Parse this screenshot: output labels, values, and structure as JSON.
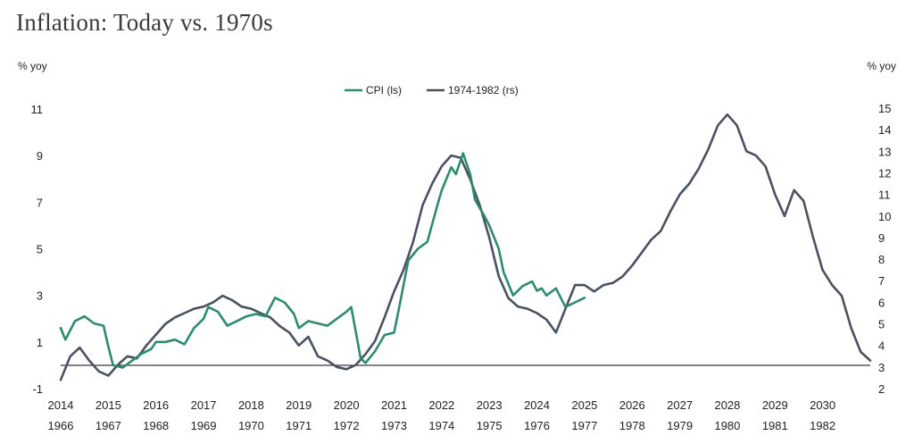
{
  "title": "Inflation: Today vs. 1970s",
  "chart_data": {
    "type": "line",
    "title": "Inflation: Today vs. 1970s",
    "left_axis": {
      "unit_label": "% yoy",
      "ylim": [
        -1,
        11
      ],
      "ticks": [
        -1,
        1,
        3,
        5,
        7,
        9,
        11
      ]
    },
    "right_axis": {
      "unit_label": "% yoy",
      "ylim": [
        2,
        15
      ],
      "ticks": [
        2,
        3,
        4,
        5,
        6,
        7,
        8,
        9,
        10,
        11,
        12,
        13,
        14,
        15
      ]
    },
    "x_axis_top": {
      "labels": [
        "2014",
        "2015",
        "2016",
        "2017",
        "2018",
        "2019",
        "2020",
        "2021",
        "2022",
        "2023",
        "2024",
        "2025",
        "2026",
        "2027",
        "2028",
        "2029",
        "2030"
      ]
    },
    "x_axis_bottom": {
      "labels": [
        "1966",
        "1967",
        "1968",
        "1969",
        "1970",
        "1971",
        "1972",
        "1973",
        "1974",
        "1975",
        "1976",
        "1977",
        "1978",
        "1979",
        "1980",
        "1981",
        "1982"
      ]
    },
    "legend": {
      "placement": "top-center"
    },
    "grid": false,
    "series": [
      {
        "name": "CPI (ls)",
        "axis": "left",
        "color": "#2e8b6e",
        "x": [
          2014.0,
          2014.1,
          2014.3,
          2014.5,
          2014.7,
          2014.9,
          2015.0,
          2015.1,
          2015.3,
          2015.5,
          2015.7,
          2015.9,
          2016.0,
          2016.2,
          2016.4,
          2016.6,
          2016.8,
          2017.0,
          2017.1,
          2017.3,
          2017.5,
          2017.7,
          2017.9,
          2018.1,
          2018.3,
          2018.5,
          2018.7,
          2018.9,
          2019.0,
          2019.2,
          2019.4,
          2019.6,
          2019.8,
          2020.0,
          2020.1,
          2020.3,
          2020.4,
          2020.6,
          2020.8,
          2021.0,
          2021.1,
          2021.3,
          2021.5,
          2021.7,
          2021.9,
          2022.0,
          2022.2,
          2022.3,
          2022.45,
          2022.6,
          2022.7,
          2022.9,
          2023.0,
          2023.2,
          2023.3,
          2023.5,
          2023.7,
          2023.9,
          2024.0,
          2024.1,
          2024.2,
          2024.4,
          2024.6,
          2024.8,
          2025.0
        ],
        "values": [
          1.6,
          1.1,
          1.9,
          2.1,
          1.8,
          1.7,
          0.8,
          0.0,
          -0.1,
          0.2,
          0.5,
          0.7,
          1.0,
          1.0,
          1.1,
          0.9,
          1.6,
          2.0,
          2.5,
          2.3,
          1.7,
          1.9,
          2.1,
          2.2,
          2.1,
          2.9,
          2.7,
          2.2,
          1.6,
          1.9,
          1.8,
          1.7,
          2.0,
          2.3,
          2.5,
          0.3,
          0.1,
          0.6,
          1.3,
          1.4,
          2.4,
          4.5,
          5.0,
          5.3,
          6.8,
          7.5,
          8.5,
          8.2,
          9.1,
          8.2,
          7.1,
          6.4,
          6.0,
          5.0,
          4.0,
          3.0,
          3.4,
          3.6,
          3.2,
          3.3,
          3.0,
          3.3,
          2.5,
          2.7,
          2.9
        ]
      },
      {
        "name": "1974-1982 (rs)",
        "axis": "right",
        "color": "#4a5260",
        "x": [
          2014.0,
          2014.2,
          2014.4,
          2014.6,
          2014.8,
          2015.0,
          2015.2,
          2015.4,
          2015.6,
          2015.8,
          2016.0,
          2016.2,
          2016.4,
          2016.6,
          2016.8,
          2017.0,
          2017.2,
          2017.4,
          2017.6,
          2017.8,
          2018.0,
          2018.2,
          2018.4,
          2018.6,
          2018.8,
          2019.0,
          2019.2,
          2019.4,
          2019.6,
          2019.8,
          2020.0,
          2020.2,
          2020.4,
          2020.6,
          2020.8,
          2021.0,
          2021.2,
          2021.4,
          2021.6,
          2021.8,
          2022.0,
          2022.2,
          2022.4,
          2022.6,
          2022.8,
          2023.0,
          2023.2,
          2023.4,
          2023.6,
          2023.8,
          2024.0,
          2024.2,
          2024.4,
          2024.6,
          2024.8,
          2025.0,
          2025.2,
          2025.4,
          2025.6,
          2025.8,
          2026.0,
          2026.2,
          2026.4,
          2026.6,
          2026.8,
          2027.0,
          2027.2,
          2027.4,
          2027.6,
          2027.8,
          2028.0,
          2028.2,
          2028.4,
          2028.6,
          2028.8,
          2029.0,
          2029.2,
          2029.4,
          2029.6,
          2029.8,
          2030.0,
          2030.2,
          2030.4,
          2030.6,
          2030.8,
          2031.0
        ],
        "values": [
          2.4,
          3.5,
          3.9,
          3.3,
          2.8,
          2.6,
          3.1,
          3.5,
          3.4,
          4.0,
          4.5,
          5.0,
          5.3,
          5.5,
          5.7,
          5.8,
          6.0,
          6.3,
          6.1,
          5.8,
          5.7,
          5.5,
          5.3,
          4.9,
          4.6,
          4.0,
          4.4,
          3.5,
          3.3,
          3.0,
          2.9,
          3.1,
          3.6,
          4.2,
          5.3,
          6.5,
          7.5,
          8.8,
          10.5,
          11.5,
          12.3,
          12.8,
          12.7,
          11.7,
          10.5,
          9.0,
          7.2,
          6.2,
          5.8,
          5.7,
          5.5,
          5.2,
          4.6,
          5.7,
          6.8,
          6.8,
          6.5,
          6.8,
          6.9,
          7.2,
          7.7,
          8.3,
          8.9,
          9.3,
          10.2,
          11.0,
          11.5,
          12.2,
          13.1,
          14.2,
          14.7,
          14.2,
          13.0,
          12.8,
          12.3,
          11.0,
          10.0,
          11.2,
          10.7,
          9.0,
          7.5,
          6.8,
          6.3,
          4.8,
          3.7,
          3.3
        ]
      }
    ]
  }
}
